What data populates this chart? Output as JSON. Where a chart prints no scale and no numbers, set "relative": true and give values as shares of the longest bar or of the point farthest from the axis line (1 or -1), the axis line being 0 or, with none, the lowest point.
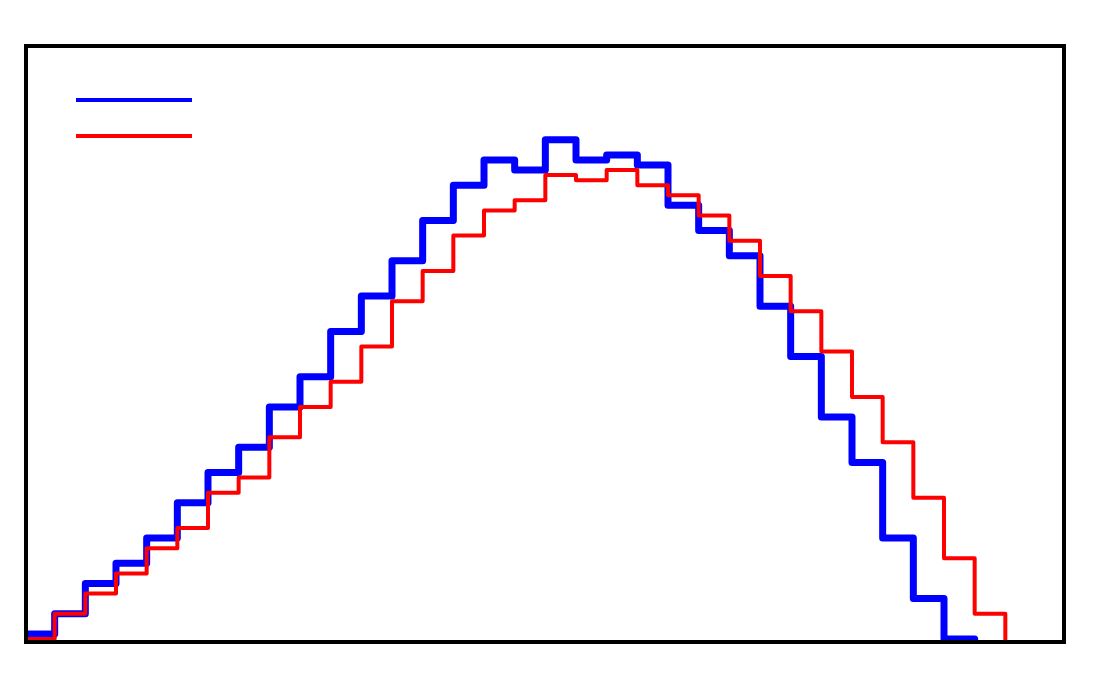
{
  "chart_data": {
    "type": "step",
    "relative": true,
    "categories": [
      null,
      null,
      null,
      null,
      null,
      null,
      null,
      null,
      null,
      null,
      null,
      null,
      null,
      null,
      null,
      null,
      null,
      null,
      null,
      null,
      null,
      null,
      null,
      null,
      null,
      null,
      null,
      null,
      null,
      null,
      null,
      null,
      null,
      null
    ],
    "series": [
      {
        "color": "#0000ff",
        "values": [
          0.02,
          0.06,
          0.12,
          0.16,
          0.21,
          0.28,
          0.34,
          0.39,
          0.47,
          0.53,
          0.62,
          0.69,
          0.76,
          0.84,
          0.91,
          0.96,
          0.94,
          1,
          0.96,
          0.97,
          0.95,
          0.87,
          0.82,
          0.77,
          0.67,
          0.57,
          0.45,
          0.36,
          0.21,
          0.09,
          0.01,
          0,
          0,
          null
        ]
      },
      {
        "color": "#ff0000",
        "values": [
          0.01,
          0.06,
          0.1,
          0.14,
          0.19,
          0.23,
          0.3,
          0.33,
          0.41,
          0.47,
          0.52,
          0.59,
          0.68,
          0.74,
          0.81,
          0.86,
          0.88,
          0.93,
          0.92,
          0.94,
          0.91,
          0.89,
          0.85,
          0.8,
          0.73,
          0.66,
          0.58,
          0.49,
          0.4,
          0.29,
          0.17,
          0.06,
          0,
          null
        ]
      }
    ]
  }
}
